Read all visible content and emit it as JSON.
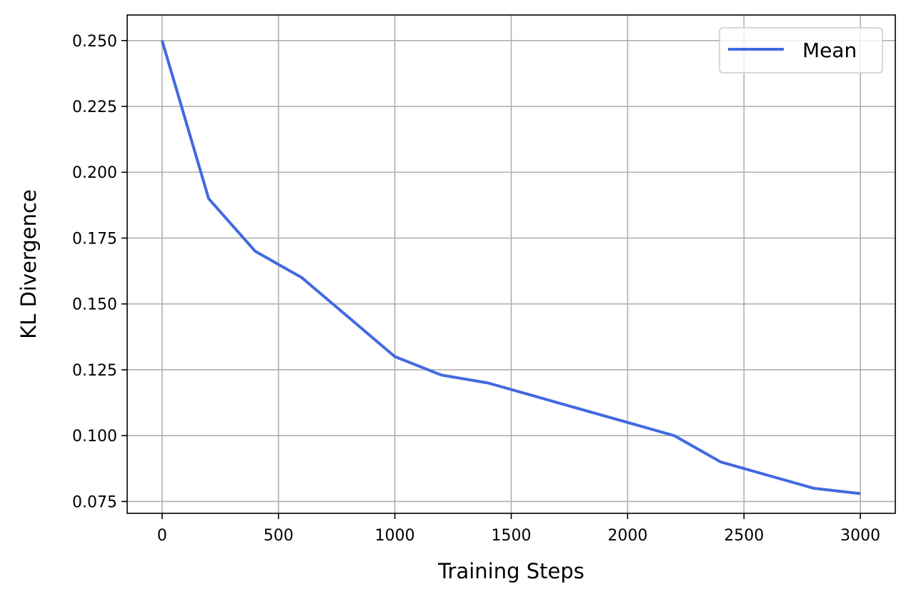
{
  "chart_data": {
    "type": "line",
    "title": "",
    "xlabel": "Training Steps",
    "ylabel": "KL Divergence",
    "xlim": [
      -150,
      3150
    ],
    "ylim": [
      0.0705,
      0.2597
    ],
    "xticks": [
      0,
      500,
      1000,
      1500,
      2000,
      2500,
      3000
    ],
    "xtick_labels": [
      "0",
      "500",
      "1000",
      "1500",
      "2000",
      "2500",
      "3000"
    ],
    "yticks": [
      0.075,
      0.1,
      0.125,
      0.15,
      0.175,
      0.2,
      0.225,
      0.25
    ],
    "ytick_labels": [
      "0.075",
      "0.100",
      "0.125",
      "0.150",
      "0.175",
      "0.200",
      "0.225",
      "0.250"
    ],
    "grid": true,
    "legend_position": "top-right",
    "series": [
      {
        "name": "Mean",
        "color": "#4169e1",
        "x": [
          0,
          200,
          400,
          600,
          800,
          1000,
          1200,
          1400,
          1600,
          1800,
          2000,
          2200,
          2400,
          2600,
          2800,
          3000
        ],
        "y": [
          0.25,
          0.19,
          0.17,
          0.16,
          0.145,
          0.13,
          0.123,
          0.12,
          0.115,
          0.11,
          0.105,
          0.1,
          0.09,
          0.085,
          0.08,
          0.078
        ]
      }
    ]
  }
}
